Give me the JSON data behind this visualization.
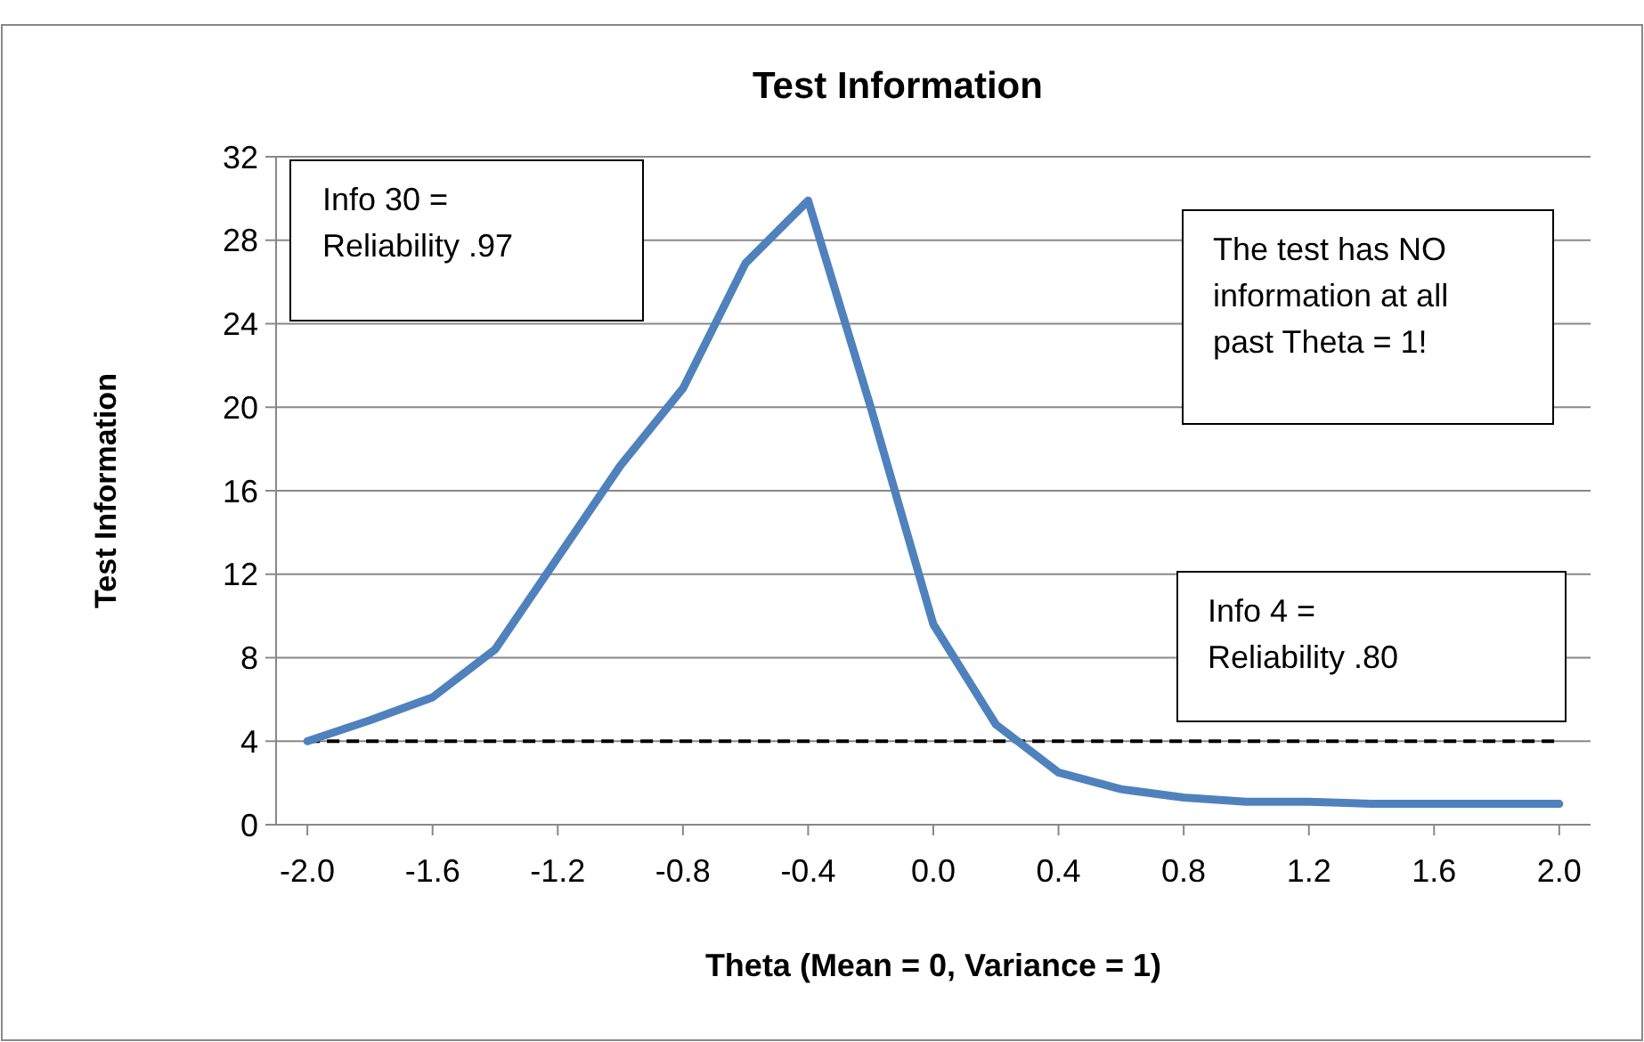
{
  "chart_data": {
    "type": "line",
    "title": "Test Information",
    "xlabel": "Theta (Mean = 0, Variance = 1)",
    "ylabel": "Test Information",
    "x": [
      -2.0,
      -1.8,
      -1.6,
      -1.4,
      -1.2,
      -1.0,
      -0.8,
      -0.6,
      -0.4,
      -0.2,
      0.0,
      0.2,
      0.4,
      0.6,
      0.8,
      1.0,
      1.2,
      1.4,
      1.6,
      1.8,
      2.0
    ],
    "series": [
      {
        "color": "#4f81bd",
        "values": [
          4.0,
          5.0,
          6.1,
          8.4,
          12.8,
          17.2,
          20.9,
          26.9,
          29.9,
          20,
          9.6,
          4.8,
          2.5,
          1.7,
          1.3,
          1.1,
          1.1,
          1.0,
          1.0,
          1.0,
          1.0
        ]
      }
    ],
    "xlim": [
      -2.1,
      2.1
    ],
    "xticks": [
      {
        "value": -2.0,
        "label": "-2.0"
      },
      {
        "value": -1.6,
        "label": "-1.6"
      },
      {
        "value": -1.2,
        "label": "-1.2"
      },
      {
        "value": -0.8,
        "label": "-0.8"
      },
      {
        "value": -0.4,
        "label": "-0.4"
      },
      {
        "value": 0,
        "label": "0.0"
      },
      {
        "value": 0.4,
        "label": "0.4"
      },
      {
        "value": 0.8,
        "label": "0.8"
      },
      {
        "value": 1.2,
        "label": "1.2"
      },
      {
        "value": 1.6,
        "label": "1.6"
      },
      {
        "value": 2.0,
        "label": "2.0"
      }
    ],
    "ylim": [
      0,
      32
    ],
    "yticks": [
      0,
      4,
      8,
      12,
      16,
      20,
      24,
      28,
      32
    ],
    "grid": "y",
    "marker": "none",
    "line_style": "solid",
    "ref_lines": [
      {
        "axis": "y",
        "value": 4,
        "color": "#000000",
        "line_style": "dashed"
      }
    ],
    "annotations": [
      "Info 30 =\nReliability .97",
      "The test has NO\ninformation at all\npast Theta = 1!",
      "Info 4 =\nReliability .80"
    ]
  }
}
